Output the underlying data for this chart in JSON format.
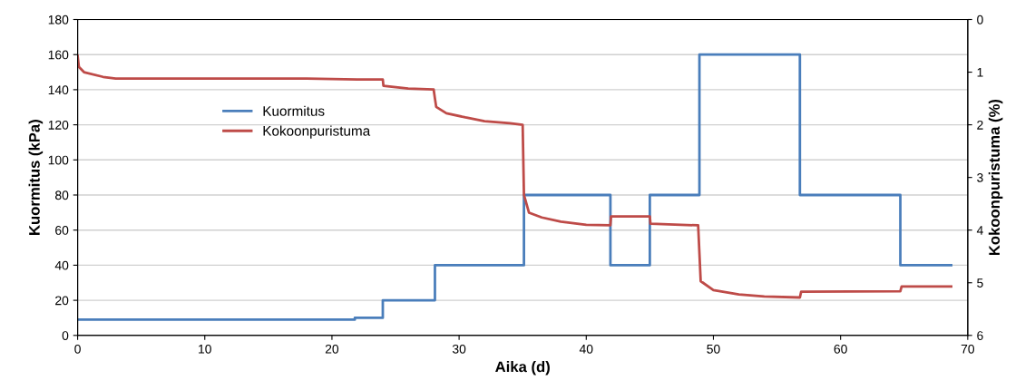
{
  "chart_data": {
    "type": "line",
    "xlabel": "Aika (d)",
    "ylabel": "Kuormitus (kPa)",
    "y2label": "Kokoonpuristuma (%)",
    "xlim": [
      0,
      70
    ],
    "xticks": [
      0,
      10,
      20,
      30,
      40,
      50,
      60,
      70
    ],
    "ylim": [
      0,
      180
    ],
    "yticks": [
      0,
      20,
      40,
      60,
      80,
      100,
      120,
      140,
      160,
      180
    ],
    "y2lim": [
      6,
      0
    ],
    "y2ticks": [
      0,
      1,
      2,
      3,
      4,
      5,
      6
    ],
    "grid": "y",
    "legend": "center left",
    "marker": "none",
    "line_style": "solid",
    "series": [
      {
        "name": "Kuormitus",
        "type": "step",
        "color": "#4a7ebb",
        "x": [
          0,
          21.8,
          24.0,
          28.1,
          35.1,
          41.9,
          45.0,
          48.9,
          56.8,
          64.7,
          68.7
        ],
        "values": [
          9,
          10,
          20,
          40,
          80,
          40,
          80,
          160,
          80,
          40,
          40
        ]
      },
      {
        "name": "Kokoonpuristuma",
        "axis": "y2",
        "color": "#be4b48",
        "x": [
          0,
          0.1,
          0.5,
          2,
          3,
          18,
          22,
          24,
          24.05,
          26,
          28,
          28.1,
          28.2,
          29,
          30.5,
          32,
          34,
          35,
          35.1,
          35.5,
          36.5,
          38,
          40,
          41.9,
          41.95,
          45,
          45.05,
          48.8,
          49,
          50,
          52,
          54,
          56.8,
          56.9,
          64.7,
          64.8,
          68.7
        ],
        "values": [
          0.69,
          0.9,
          1.0,
          1.09,
          1.12,
          1.12,
          1.14,
          1.14,
          1.26,
          1.31,
          1.33,
          1.5,
          1.66,
          1.78,
          1.86,
          1.93,
          1.97,
          2.0,
          3.33,
          3.67,
          3.76,
          3.84,
          3.9,
          3.91,
          3.74,
          3.74,
          3.88,
          3.91,
          4.97,
          5.14,
          5.22,
          5.26,
          5.28,
          5.17,
          5.16,
          5.07,
          5.07
        ]
      }
    ]
  }
}
